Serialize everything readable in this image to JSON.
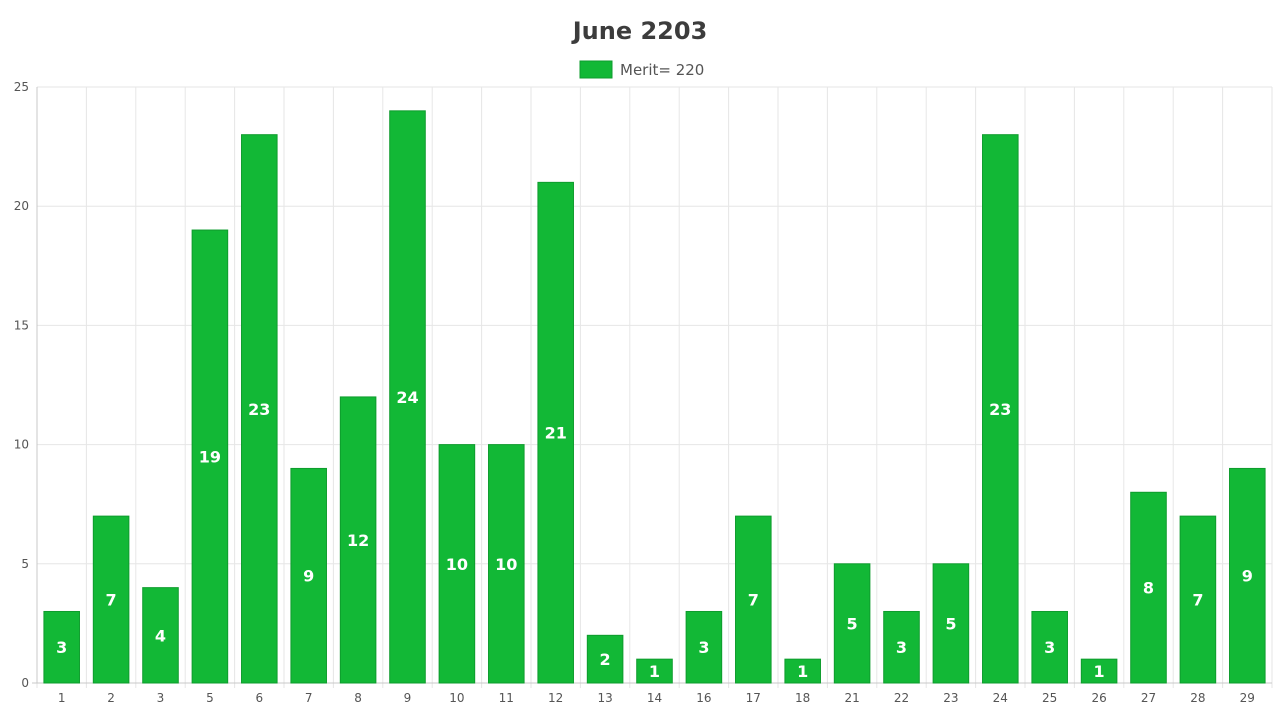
{
  "chart_data": {
    "type": "bar",
    "title": "June 2203",
    "xlabel": "",
    "ylabel": "",
    "categories": [
      "1",
      "2",
      "3",
      "5",
      "6",
      "7",
      "8",
      "9",
      "10",
      "11",
      "12",
      "13",
      "14",
      "16",
      "17",
      "18",
      "21",
      "22",
      "23",
      "24",
      "25",
      "26",
      "27",
      "28",
      "29"
    ],
    "series": [
      {
        "name": "Merit= 220",
        "values": [
          3,
          7,
          4,
          19,
          23,
          9,
          12,
          24,
          10,
          10,
          21,
          2,
          1,
          3,
          7,
          1,
          5,
          3,
          5,
          23,
          3,
          1,
          8,
          7,
          9
        ],
        "color": "#12b836"
      }
    ],
    "ylim": [
      0,
      25
    ],
    "yticks": [
      0,
      5,
      10,
      15,
      20,
      25
    ],
    "grid": true,
    "legend_position": "top-center",
    "data_labels": true
  },
  "colors": {
    "bar_fill": "#12b836",
    "bar_stroke": "#0e9c2d",
    "grid": "#e6e6e6",
    "axis": "#c8c8c8",
    "label": "#ffffff"
  }
}
